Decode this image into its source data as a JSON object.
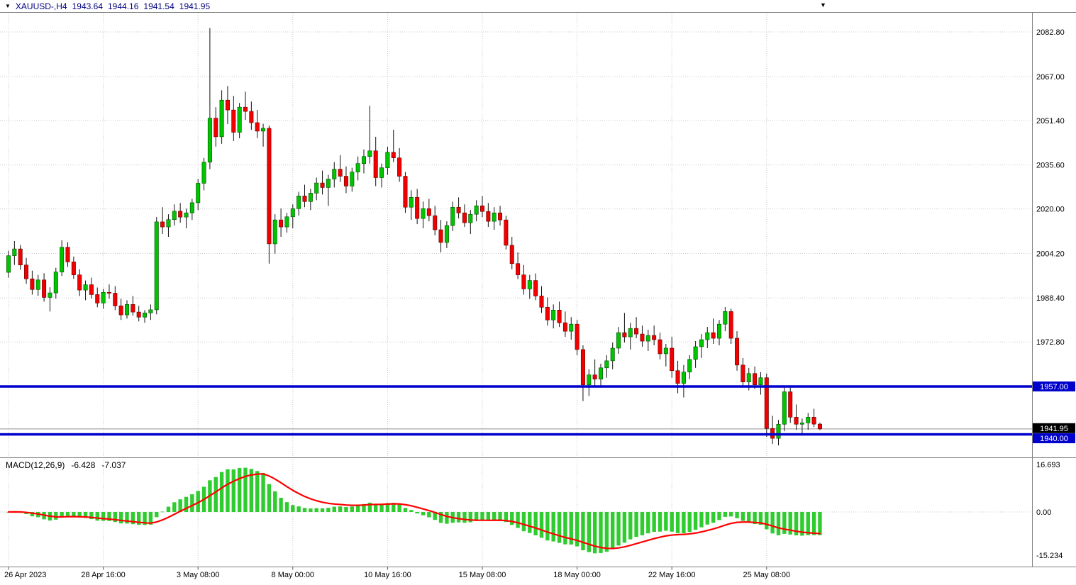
{
  "header": {
    "symbol_period": "XAUUSD-,H4",
    "open": "1943.64",
    "high": "1944.16",
    "low": "1941.54",
    "close": "1941.95"
  },
  "macd": {
    "label": "MACD(12,26,9)",
    "main_value": "-6.428",
    "signal_value": "-7.037",
    "axis_ticks": [
      {
        "text": "16.693",
        "value": 16.693
      },
      {
        "text": "0.00",
        "value": 0
      },
      {
        "text": "-15.234",
        "value": -15.234
      }
    ]
  },
  "price_axis": {
    "ticks": [
      {
        "text": "2082.80",
        "value": 2082.8
      },
      {
        "text": "2067.00",
        "value": 2067.0
      },
      {
        "text": "2051.40",
        "value": 2051.4
      },
      {
        "text": "2035.60",
        "value": 2035.6
      },
      {
        "text": "2020.00",
        "value": 2020.0
      },
      {
        "text": "2004.20",
        "value": 2004.2
      },
      {
        "text": "1988.40",
        "value": 1988.4
      },
      {
        "text": "1972.80",
        "value": 1972.8
      }
    ]
  },
  "time_axis": {
    "ticks": [
      {
        "text": "26 Apr 2023",
        "index": 0
      },
      {
        "text": "28 Apr 16:00",
        "index": 16
      },
      {
        "text": "3 May 08:00",
        "index": 32
      },
      {
        "text": "8 May 00:00",
        "index": 48
      },
      {
        "text": "10 May 16:00",
        "index": 64
      },
      {
        "text": "15 May 08:00",
        "index": 80
      },
      {
        "text": "18 May 00:00",
        "index": 96
      },
      {
        "text": "22 May 16:00",
        "index": 112
      },
      {
        "text": "25 May 08:00",
        "index": 128
      }
    ]
  },
  "levels": [
    {
      "label": "1957.00",
      "value": 1957.0,
      "color": "#0000cd"
    },
    {
      "label": "1940.00",
      "value": 1940.0,
      "color": "#0000cd"
    }
  ],
  "current_price": {
    "label": "1941.95",
    "value": 1941.95
  },
  "colors": {
    "bull": "#00c400",
    "bull_border": "#004d00",
    "bear": "#f20000",
    "bear_border": "#5e0000",
    "wick": "#111111",
    "grid": "#c9c9c9",
    "macd_hist": "#2ecc2e",
    "macd_signal": "#ff0000",
    "current_line": "#909090",
    "tag_text": "#ffffff",
    "current_tag_bg": "#000000",
    "axis_text": "#000000",
    "frame": "#808080"
  },
  "chart_data": {
    "type": "candlestick",
    "title": "XAUUSD- H4 with MACD(12,26,9) and horizontal levels 1957.00 / 1940.00",
    "interval": "4h",
    "start": "2023-04-26 00:00",
    "ylim": [
      1933.1,
      2089.1
    ],
    "grid": true,
    "legend_position": "none",
    "indicator": {
      "name": "MACD",
      "params": [
        12,
        26,
        9
      ],
      "current_macd": -6.428,
      "current_signal": -7.037,
      "ylim": [
        -15.234,
        16.693
      ]
    },
    "candles_ohlc": [
      [
        1997.5,
        2005.2,
        1995.6,
        2003.4
      ],
      [
        2003.4,
        2008.6,
        2000.1,
        2005.8
      ],
      [
        2005.8,
        2007.2,
        1998.4,
        2000.1
      ],
      [
        2000.1,
        2002.6,
        1993.4,
        1995.2
      ],
      [
        1995.2,
        1998.1,
        1989.6,
        1991.4
      ],
      [
        1991.4,
        1996.6,
        1989.2,
        1994.8
      ],
      [
        1994.8,
        1997.2,
        1987.1,
        1988.6
      ],
      [
        1988.6,
        1992.2,
        1983.6,
        1990.2
      ],
      [
        1990.2,
        1999.1,
        1988.2,
        1997.6
      ],
      [
        1997.6,
        2008.9,
        1996.2,
        2006.4
      ],
      [
        2006.4,
        2008.2,
        1999.4,
        2001.2
      ],
      [
        2001.2,
        2003.1,
        1995.2,
        1996.6
      ],
      [
        1996.6,
        1998.6,
        1989.1,
        1991.2
      ],
      [
        1991.2,
        1994.6,
        1987.6,
        1993.1
      ],
      [
        1993.1,
        1995.6,
        1988.2,
        1989.6
      ],
      [
        1989.6,
        1992.1,
        1985.1,
        1986.6
      ],
      [
        1986.6,
        1991.6,
        1984.6,
        1990.4
      ],
      [
        1990.4,
        1993.2,
        1988.1,
        1990.1
      ],
      [
        1990.1,
        1992.6,
        1984.1,
        1985.6
      ],
      [
        1985.6,
        1988.1,
        1980.6,
        1982.4
      ],
      [
        1982.4,
        1987.6,
        1981.1,
        1986.1
      ],
      [
        1986.1,
        1989.1,
        1982.1,
        1983.4
      ],
      [
        1983.4,
        1985.6,
        1980.1,
        1981.6
      ],
      [
        1981.6,
        1984.1,
        1979.6,
        1983.1
      ],
      [
        1983.1,
        1986.1,
        1980.6,
        1984.2
      ],
      [
        1984.2,
        2017.1,
        1982.6,
        2015.4
      ],
      [
        2015.4,
        2020.6,
        2011.1,
        2013.6
      ],
      [
        2013.6,
        2018.1,
        2010.1,
        2016.2
      ],
      [
        2016.2,
        2021.6,
        2014.1,
        2019.2
      ],
      [
        2019.2,
        2022.1,
        2015.1,
        2017.1
      ],
      [
        2017.1,
        2020.1,
        2013.1,
        2018.6
      ],
      [
        2018.6,
        2023.6,
        2016.1,
        2022.2
      ],
      [
        2022.2,
        2030.6,
        2019.6,
        2029.1
      ],
      [
        2029.1,
        2038.1,
        2026.6,
        2036.6
      ],
      [
        2036.6,
        2084.2,
        2034.1,
        2052.2
      ],
      [
        2052.2,
        2056.1,
        2042.1,
        2045.6
      ],
      [
        2045.6,
        2062.1,
        2043.1,
        2058.6
      ],
      [
        2058.6,
        2063.6,
        2050.1,
        2055.1
      ],
      [
        2055.1,
        2060.1,
        2044.1,
        2047.2
      ],
      [
        2047.2,
        2057.6,
        2045.1,
        2056.1
      ],
      [
        2056.1,
        2061.6,
        2051.6,
        2054.6
      ],
      [
        2054.6,
        2058.1,
        2048.1,
        2050.6
      ],
      [
        2050.6,
        2055.1,
        2045.1,
        2047.6
      ],
      [
        2047.6,
        2050.2,
        2042.1,
        2048.6
      ],
      [
        2048.6,
        2049.6,
        2000.6,
        2007.6
      ],
      [
        2007.6,
        2018.1,
        2004.1,
        2016.1
      ],
      [
        2016.1,
        2020.2,
        2010.1,
        2013.6
      ],
      [
        2013.6,
        2018.6,
        2011.6,
        2017.2
      ],
      [
        2017.2,
        2021.6,
        2013.1,
        2020.1
      ],
      [
        2020.1,
        2026.1,
        2017.6,
        2024.6
      ],
      [
        2024.6,
        2028.6,
        2020.6,
        2022.6
      ],
      [
        2022.6,
        2027.1,
        2019.6,
        2025.6
      ],
      [
        2025.6,
        2031.1,
        2023.1,
        2029.2
      ],
      [
        2029.2,
        2033.6,
        2025.1,
        2027.6
      ],
      [
        2027.6,
        2032.1,
        2021.1,
        2030.6
      ],
      [
        2030.6,
        2036.6,
        2027.6,
        2034.1
      ],
      [
        2034.1,
        2039.1,
        2029.6,
        2031.6
      ],
      [
        2031.6,
        2035.1,
        2025.6,
        2028.1
      ],
      [
        2028.1,
        2034.6,
        2026.1,
        2033.1
      ],
      [
        2033.1,
        2038.6,
        2030.1,
        2036.1
      ],
      [
        2036.1,
        2041.1,
        2032.6,
        2038.6
      ],
      [
        2038.6,
        2056.6,
        2036.1,
        2040.6
      ],
      [
        2040.6,
        2045.6,
        2028.1,
        2031.1
      ],
      [
        2031.1,
        2036.1,
        2027.6,
        2034.6
      ],
      [
        2034.6,
        2042.1,
        2032.1,
        2040.1
      ],
      [
        2040.1,
        2048.1,
        2036.6,
        2038.1
      ],
      [
        2038.1,
        2041.6,
        2029.6,
        2031.6
      ],
      [
        2031.6,
        2033.1,
        2018.6,
        2020.6
      ],
      [
        2020.6,
        2026.6,
        2016.1,
        2024.1
      ],
      [
        2024.1,
        2027.1,
        2014.6,
        2016.6
      ],
      [
        2016.6,
        2022.6,
        2013.1,
        2020.1
      ],
      [
        2020.1,
        2023.6,
        2015.6,
        2017.6
      ],
      [
        2017.6,
        2021.1,
        2010.6,
        2012.6
      ],
      [
        2012.6,
        2016.1,
        2004.6,
        2008.1
      ],
      [
        2008.1,
        2015.6,
        2006.1,
        2014.1
      ],
      [
        2014.1,
        2022.6,
        2012.1,
        2020.6
      ],
      [
        2020.6,
        2024.1,
        2016.6,
        2018.6
      ],
      [
        2018.6,
        2021.6,
        2013.6,
        2015.1
      ],
      [
        2015.1,
        2019.6,
        2011.1,
        2018.1
      ],
      [
        2018.1,
        2023.1,
        2015.6,
        2021.1
      ],
      [
        2021.1,
        2024.6,
        2017.1,
        2019.1
      ],
      [
        2019.1,
        2022.1,
        2013.6,
        2015.6
      ],
      [
        2015.6,
        2020.6,
        2012.6,
        2018.6
      ],
      [
        2018.6,
        2021.1,
        2014.1,
        2016.1
      ],
      [
        2016.1,
        2017.6,
        2005.6,
        2007.1
      ],
      [
        2007.1,
        2010.1,
        1998.6,
        2000.6
      ],
      [
        2000.6,
        2004.6,
        1995.1,
        1996.6
      ],
      [
        1996.6,
        2000.1,
        1989.6,
        1991.6
      ],
      [
        1991.6,
        1996.6,
        1988.1,
        1994.6
      ],
      [
        1994.6,
        1997.1,
        1987.6,
        1989.1
      ],
      [
        1989.1,
        1992.6,
        1983.1,
        1985.1
      ],
      [
        1985.1,
        1988.6,
        1978.6,
        1980.6
      ],
      [
        1980.6,
        1986.1,
        1977.6,
        1984.1
      ],
      [
        1984.1,
        1987.1,
        1978.1,
        1979.6
      ],
      [
        1979.6,
        1983.6,
        1974.6,
        1976.6
      ],
      [
        1976.6,
        1981.6,
        1973.6,
        1979.1
      ],
      [
        1979.1,
        1980.6,
        1968.1,
        1970.1
      ],
      [
        1970.1,
        1971.6,
        1951.8,
        1957.6
      ],
      [
        1957.6,
        1963.1,
        1953.6,
        1961.1
      ],
      [
        1961.1,
        1966.6,
        1957.1,
        1959.6
      ],
      [
        1959.6,
        1965.1,
        1956.6,
        1963.6
      ],
      [
        1963.6,
        1968.1,
        1960.1,
        1966.1
      ],
      [
        1966.1,
        1972.6,
        1963.1,
        1970.6
      ],
      [
        1970.6,
        1978.1,
        1968.6,
        1976.1
      ],
      [
        1976.1,
        1983.1,
        1972.6,
        1974.6
      ],
      [
        1974.6,
        1979.6,
        1970.1,
        1977.6
      ],
      [
        1977.6,
        1981.6,
        1974.1,
        1975.6
      ],
      [
        1975.6,
        1978.6,
        1971.1,
        1973.1
      ],
      [
        1973.1,
        1977.1,
        1969.6,
        1975.1
      ],
      [
        1975.1,
        1978.6,
        1971.6,
        1973.6
      ],
      [
        1973.6,
        1976.1,
        1966.6,
        1968.6
      ],
      [
        1968.6,
        1972.1,
        1964.1,
        1970.6
      ],
      [
        1970.6,
        1974.6,
        1960.1,
        1962.6
      ],
      [
        1962.6,
        1966.1,
        1954.6,
        1958.1
      ],
      [
        1958.1,
        1964.6,
        1953.1,
        1962.1
      ],
      [
        1962.1,
        1968.1,
        1959.6,
        1966.6
      ],
      [
        1966.6,
        1973.1,
        1963.6,
        1971.1
      ],
      [
        1971.1,
        1975.6,
        1967.1,
        1973.6
      ],
      [
        1973.6,
        1978.1,
        1970.6,
        1976.1
      ],
      [
        1976.1,
        1981.1,
        1972.1,
        1974.1
      ],
      [
        1974.1,
        1980.6,
        1971.6,
        1979.1
      ],
      [
        1979.1,
        1985.2,
        1976.6,
        1983.6
      ],
      [
        1983.6,
        1984.6,
        1972.1,
        1974.1
      ],
      [
        1974.1,
        1976.6,
        1962.6,
        1964.6
      ],
      [
        1964.6,
        1967.1,
        1956.6,
        1958.6
      ],
      [
        1958.6,
        1963.6,
        1955.6,
        1961.6
      ],
      [
        1961.6,
        1964.1,
        1956.1,
        1957.6
      ],
      [
        1957.6,
        1962.1,
        1954.1,
        1960.1
      ],
      [
        1960.1,
        1961.6,
        1939.1,
        1942.1
      ],
      [
        1942.1,
        1946.6,
        1936.6,
        1938.6
      ],
      [
        1938.6,
        1945.1,
        1936.1,
        1943.6
      ],
      [
        1943.6,
        1957.2,
        1941.1,
        1955.1
      ],
      [
        1955.1,
        1956.6,
        1944.1,
        1946.1
      ],
      [
        1946.1,
        1950.6,
        1941.6,
        1943.6
      ],
      [
        1943.6,
        1945.6,
        1939.6,
        1944.1
      ],
      [
        1944.1,
        1947.6,
        1941.6,
        1946.1
      ],
      [
        1946.1,
        1949.1,
        1942.6,
        1943.64
      ],
      [
        1943.64,
        1944.16,
        1941.54,
        1941.95
      ]
    ]
  }
}
